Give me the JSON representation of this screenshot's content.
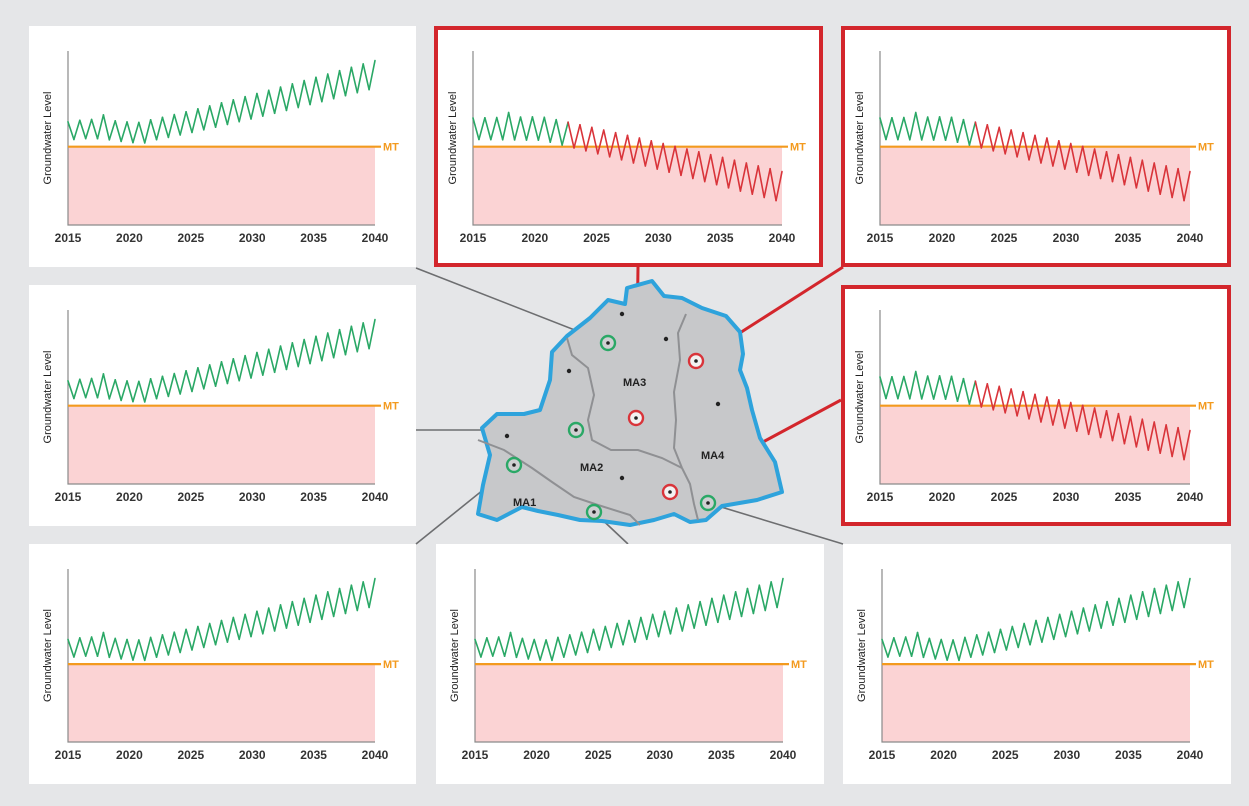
{
  "colors": {
    "background": "#e5e6e8",
    "panel": "#ffffff",
    "alert_frame": "#d3262c",
    "green_trace": "#2aa866",
    "red_trace": "#d9343a",
    "threshold_line": "#f39a1e",
    "below_threshold_fill": "#fbd3d4",
    "basin_fill": "#c7c8ca",
    "basin_outline": "#2ea3dc",
    "subarea_boundary": "#8f9093",
    "leader_line": "#6d6e70"
  },
  "map": {
    "management_areas": [
      "MA1",
      "MA2",
      "MA3",
      "MA4"
    ],
    "wells_ok_icon": "green-circle-well-icon",
    "wells_alert_icon": "red-circle-well-icon",
    "other_well_icon": "black-dot-well-icon"
  },
  "chart_data": [
    {
      "panel": "top-left",
      "type": "line",
      "ylabel": "Groundwater Level",
      "threshold_label": "MT",
      "x_ticks": [
        "2015",
        "2020",
        "2025",
        "2030",
        "2035",
        "2040"
      ],
      "xlim": [
        2015,
        2040
      ],
      "trend": "rising",
      "status": "above-threshold"
    },
    {
      "panel": "top-middle",
      "type": "line",
      "ylabel": "Groundwater Level",
      "threshold_label": "MT",
      "x_ticks": [
        "2015",
        "2020",
        "2025",
        "2030",
        "2035",
        "2040"
      ],
      "xlim": [
        2015,
        2040
      ],
      "trend": "declining",
      "status": "below-threshold"
    },
    {
      "panel": "top-right",
      "type": "line",
      "ylabel": "Groundwater Level",
      "threshold_label": "MT",
      "x_ticks": [
        "2015",
        "2020",
        "2025",
        "2030",
        "2035",
        "2040"
      ],
      "xlim": [
        2015,
        2040
      ],
      "trend": "declining",
      "status": "below-threshold"
    },
    {
      "panel": "middle-left",
      "type": "line",
      "ylabel": "Groundwater Level",
      "threshold_label": "MT",
      "x_ticks": [
        "2015",
        "2020",
        "2025",
        "2030",
        "2035",
        "2040"
      ],
      "xlim": [
        2015,
        2040
      ],
      "trend": "rising",
      "status": "above-threshold"
    },
    {
      "panel": "middle-right",
      "type": "line",
      "ylabel": "Groundwater Level",
      "threshold_label": "MT",
      "x_ticks": [
        "2015",
        "2020",
        "2025",
        "2030",
        "2035",
        "2040"
      ],
      "xlim": [
        2015,
        2040
      ],
      "trend": "declining",
      "status": "below-threshold"
    },
    {
      "panel": "bottom-left",
      "type": "line",
      "ylabel": "Groundwater Level",
      "threshold_label": "MT",
      "x_ticks": [
        "2015",
        "2020",
        "2025",
        "2030",
        "2035",
        "2040"
      ],
      "xlim": [
        2015,
        2040
      ],
      "trend": "rising",
      "status": "above-threshold"
    },
    {
      "panel": "bottom-middle",
      "type": "line",
      "ylabel": "Groundwater Level",
      "threshold_label": "MT",
      "x_ticks": [
        "2015",
        "2020",
        "2025",
        "2030",
        "2035",
        "2040"
      ],
      "xlim": [
        2015,
        2040
      ],
      "trend": "rising",
      "status": "above-threshold"
    },
    {
      "panel": "bottom-right",
      "type": "line",
      "ylabel": "Groundwater Level",
      "threshold_label": "MT",
      "x_ticks": [
        "2015",
        "2020",
        "2025",
        "2030",
        "2035",
        "2040"
      ],
      "xlim": [
        2015,
        2040
      ],
      "trend": "rising",
      "status": "above-threshold"
    }
  ]
}
